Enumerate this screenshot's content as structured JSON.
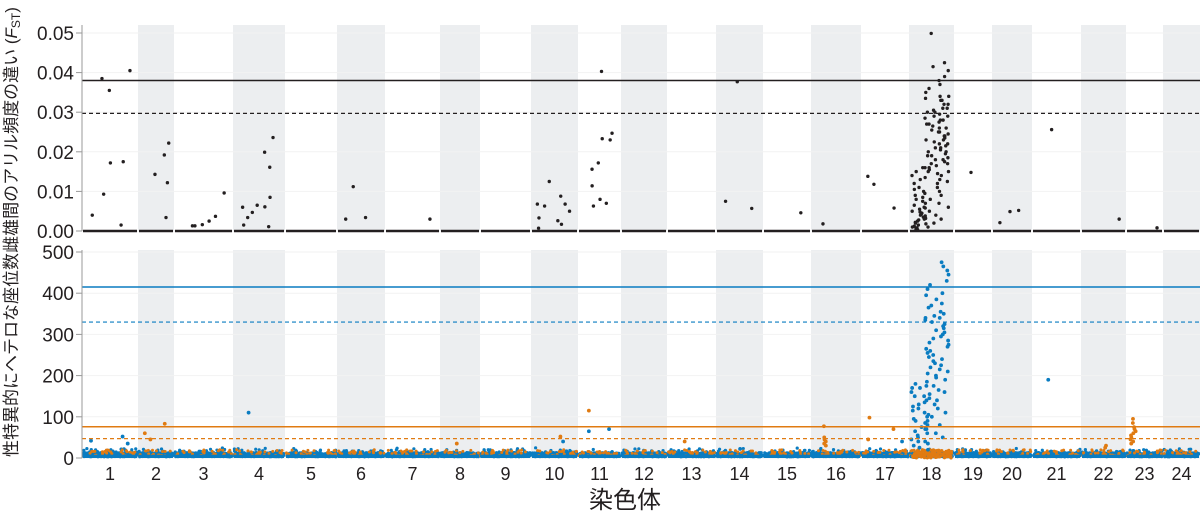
{
  "chart_data": [
    {
      "type": "scatter",
      "title": "",
      "ylabel": "雌雄間のアリル頻度の違い (",
      "ylabel_italic": "F",
      "ylabel_sub": "ST",
      "ylabel_close": ")",
      "ylim": [
        0,
        0.05
      ],
      "yticks": [
        "0.00",
        "0.01",
        "0.02",
        "0.03",
        "0.04",
        "0.05"
      ],
      "ytick_values": [
        0,
        0.01,
        0.02,
        0.03,
        0.04,
        0.05
      ],
      "point_color": "#231f20",
      "thresholds": [
        {
          "value": 0.038,
          "style": "solid",
          "color": "#231f20"
        },
        {
          "value": 0.0297,
          "style": "dashed",
          "color": "#231f20"
        }
      ],
      "points": [
        [
          1,
          0.0405
        ],
        [
          1,
          0.0385
        ],
        [
          1,
          0.0355
        ],
        [
          1,
          0.0175
        ],
        [
          1,
          0.0172
        ],
        [
          1,
          0.0093
        ],
        [
          1,
          0.004
        ],
        [
          1,
          0.0015
        ],
        [
          2,
          0.0222
        ],
        [
          2,
          0.0192
        ],
        [
          2,
          0.0143
        ],
        [
          2,
          0.0122
        ],
        [
          2,
          0.0034
        ],
        [
          3,
          0.0096
        ],
        [
          3,
          0.0025
        ],
        [
          3,
          0.0013
        ],
        [
          3,
          0.0016
        ],
        [
          3,
          0.0013
        ],
        [
          3,
          0.0037
        ],
        [
          4,
          0.0236
        ],
        [
          4,
          0.0199
        ],
        [
          4,
          0.0161
        ],
        [
          4,
          0.0085
        ],
        [
          4,
          0.0061
        ],
        [
          4,
          0.0065
        ],
        [
          4,
          0.006
        ],
        [
          4,
          0.0047
        ],
        [
          4,
          0.0034
        ],
        [
          4,
          0.0011
        ],
        [
          4,
          0.0015
        ],
        [
          6,
          0.0112
        ],
        [
          6,
          0.003
        ],
        [
          6,
          0.0034
        ],
        [
          7,
          0.003
        ],
        [
          10,
          0.0125
        ],
        [
          10,
          0.0063
        ],
        [
          10,
          0.0068
        ],
        [
          10,
          0.0088
        ],
        [
          10,
          0.0068
        ],
        [
          10,
          0.0033
        ],
        [
          10,
          0.0026
        ],
        [
          10,
          0.0017
        ],
        [
          10,
          0.005
        ],
        [
          10,
          0.0007
        ],
        [
          11,
          0.0403
        ],
        [
          11,
          0.0247
        ],
        [
          11,
          0.0233
        ],
        [
          11,
          0.023
        ],
        [
          11,
          0.0172
        ],
        [
          11,
          0.0156
        ],
        [
          11,
          0.0114
        ],
        [
          11,
          0.008
        ],
        [
          11,
          0.007
        ],
        [
          11,
          0.0063
        ],
        [
          14,
          0.0075
        ],
        [
          14,
          0.0057
        ],
        [
          14,
          0.0377
        ],
        [
          15,
          0.0046
        ],
        [
          16,
          0.0018
        ],
        [
          17,
          0.0138
        ],
        [
          17,
          0.0118
        ],
        [
          17,
          0.0058
        ],
        [
          19,
          0.0148
        ],
        [
          20,
          0.0052
        ],
        [
          20,
          0.0049
        ],
        [
          20,
          0.0021
        ],
        [
          21,
          0.0256
        ],
        [
          22,
          0.003
        ],
        [
          23,
          0.0008
        ]
      ],
      "chr18_proximal": [
        0.016,
        0.015,
        0.014,
        0.013,
        0.012,
        0.011,
        0.0105,
        0.01,
        0.0095,
        0.009,
        0.0085,
        0.008,
        0.0075,
        0.007,
        0.0065,
        0.006,
        0.0058,
        0.0055,
        0.005,
        0.0048,
        0.0045,
        0.0042,
        0.004,
        0.0038,
        0.0035,
        0.0032,
        0.003,
        0.0028,
        0.0025,
        0.0022,
        0.002,
        0.0018,
        0.0015,
        0.0012,
        0.001,
        0.0008,
        0.0005,
        0.0003
      ],
      "chr18_distal": [
        0.0499,
        0.0425,
        0.0415,
        0.0405,
        0.039,
        0.038,
        0.037,
        0.036,
        0.035,
        0.034,
        0.0335,
        0.033,
        0.032,
        0.031,
        0.0305,
        0.03,
        0.0295,
        0.029,
        0.0285,
        0.028,
        0.0275,
        0.027,
        0.0265,
        0.026,
        0.0255,
        0.025,
        0.0245,
        0.024,
        0.0235,
        0.023,
        0.0225,
        0.022,
        0.0215,
        0.021,
        0.0205,
        0.02,
        0.0195,
        0.019,
        0.0185,
        0.018,
        0.0175,
        0.017,
        0.0165,
        0.016,
        0.0155,
        0.015,
        0.0145,
        0.014,
        0.0135,
        0.013,
        0.0125,
        0.012,
        0.011,
        0.01,
        0.009,
        0.008,
        0.007,
        0.006,
        0.005,
        0.004,
        0.003,
        0.002,
        0.001,
        0.033,
        0.031,
        0.028,
        0.026,
        0.024,
        0.022,
        0.02,
        0.018,
        0.016,
        0.027,
        0.025,
        0.023,
        0.021,
        0.019,
        0.017,
        0.015,
        0.029,
        0.03,
        0.032,
        0.034
      ]
    },
    {
      "type": "scatter",
      "title": "",
      "ylabel": "性特異的にヘテロな座位数",
      "xlabel": "染色体",
      "ylim": [
        0,
        500
      ],
      "yticks": [
        "0",
        "100",
        "200",
        "300",
        "400",
        "500"
      ],
      "ytick_values": [
        0,
        100,
        200,
        300,
        400,
        500
      ],
      "categories": [
        "1",
        "2",
        "3",
        "4",
        "5",
        "6",
        "7",
        "8",
        "9",
        "10",
        "11",
        "12",
        "13",
        "14",
        "15",
        "16",
        "17",
        "18",
        "19",
        "20",
        "21",
        "22",
        "23",
        "24"
      ],
      "colors": {
        "blue": "#0a7cc1",
        "orange": "#e07b12"
      },
      "thresholds": [
        {
          "value": 415,
          "style": "solid",
          "color": "#0a7cc1"
        },
        {
          "value": 330,
          "style": "dashed",
          "color": "#0a7cc1"
        },
        {
          "value": 76,
          "style": "solid",
          "color": "#e07b12"
        },
        {
          "value": 47,
          "style": "dashed",
          "color": "#e07b12"
        }
      ],
      "blue_points": [
        [
          1,
          52
        ],
        [
          1,
          42
        ],
        [
          1,
          35
        ],
        [
          4,
          110
        ],
        [
          10,
          40
        ],
        [
          11,
          70
        ],
        [
          11,
          65
        ],
        [
          14,
          22
        ],
        [
          17,
          40
        ],
        [
          21,
          190
        ]
      ],
      "orange_points": [
        [
          2,
          83
        ],
        [
          2,
          60
        ],
        [
          2,
          45
        ],
        [
          8,
          35
        ],
        [
          10,
          52
        ],
        [
          11,
          115
        ],
        [
          13,
          40
        ],
        [
          16,
          77
        ],
        [
          16,
          50
        ],
        [
          16,
          45
        ],
        [
          16,
          40
        ],
        [
          16,
          35
        ],
        [
          16,
          30
        ],
        [
          17,
          98
        ],
        [
          17,
          70
        ],
        [
          17,
          45
        ],
        [
          23,
          95
        ],
        [
          23,
          85
        ],
        [
          23,
          75
        ],
        [
          23,
          70
        ],
        [
          23,
          65
        ],
        [
          23,
          60
        ],
        [
          23,
          55
        ],
        [
          23,
          50
        ],
        [
          23,
          45
        ],
        [
          23,
          40
        ],
        [
          23,
          35
        ],
        [
          22,
          30
        ],
        [
          22,
          25
        ]
      ],
      "chr18_blue_proximal": [
        205,
        180,
        175,
        170,
        160,
        150,
        140,
        130,
        125,
        120,
        110,
        100,
        95,
        90,
        85,
        80,
        75,
        70,
        65,
        60,
        55,
        50,
        45,
        40,
        35,
        30,
        25,
        20,
        170,
        150,
        135,
        115,
        105
      ],
      "chr18_blue_distal": [
        475,
        465,
        455,
        445,
        430,
        420,
        410,
        400,
        395,
        385,
        375,
        365,
        355,
        345,
        340,
        335,
        330,
        320,
        310,
        300,
        290,
        285,
        280,
        270,
        260,
        250,
        245,
        240,
        235,
        225,
        220,
        210,
        200,
        195,
        185,
        175,
        165,
        155,
        145,
        140,
        130,
        120,
        110,
        100,
        90,
        80,
        70,
        60,
        50,
        40,
        350,
        325,
        305,
        295,
        275,
        255,
        230,
        215,
        190,
        160,
        370,
        340,
        315,
        265
      ]
    }
  ]
}
